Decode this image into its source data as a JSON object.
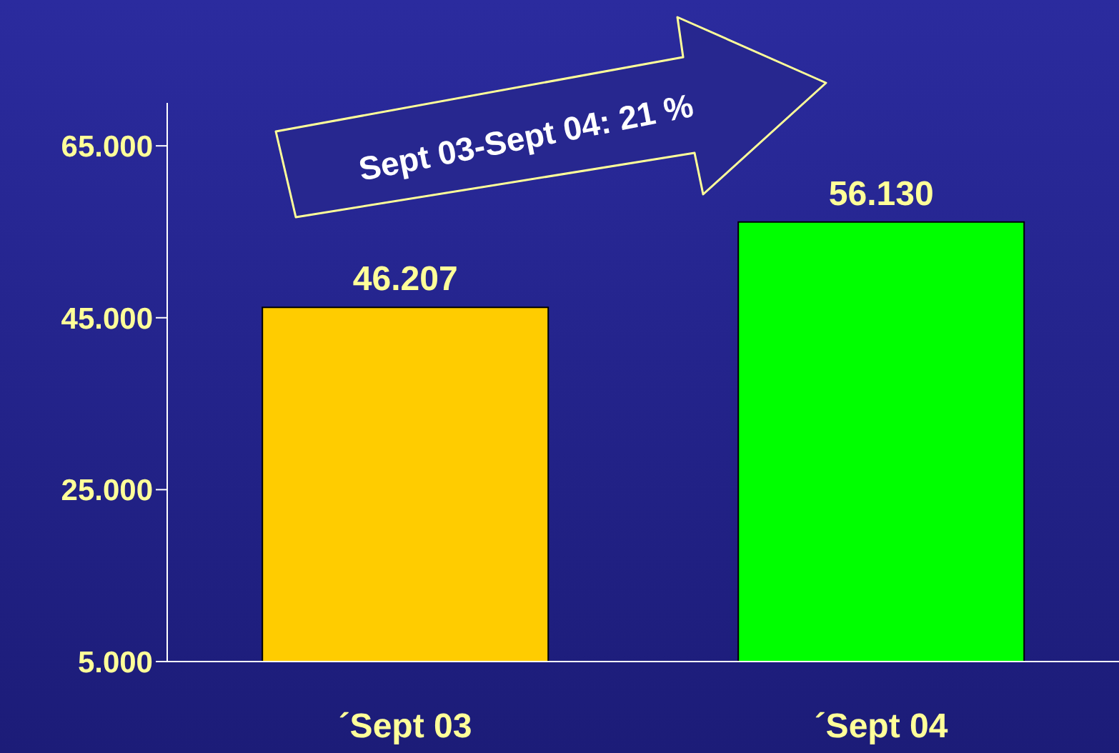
{
  "chart_data": {
    "type": "bar",
    "categories": [
      "´Sept 03",
      "´Sept 04"
    ],
    "values": [
      46207,
      56130
    ],
    "colors": [
      "#ffcc00",
      "#00ff00"
    ],
    "value_labels": [
      "46.207",
      "56.130"
    ],
    "ylim": [
      5000,
      70000
    ],
    "yticks": [
      {
        "value": 5000,
        "label": "5.000"
      },
      {
        "value": 25000,
        "label": "25.000"
      },
      {
        "value": 45000,
        "label": "45.000"
      },
      {
        "value": 65000,
        "label": "65.000"
      }
    ],
    "annotations": [
      "Sept 03-Sept 04: 21 %"
    ],
    "grid": false,
    "legend": false
  }
}
